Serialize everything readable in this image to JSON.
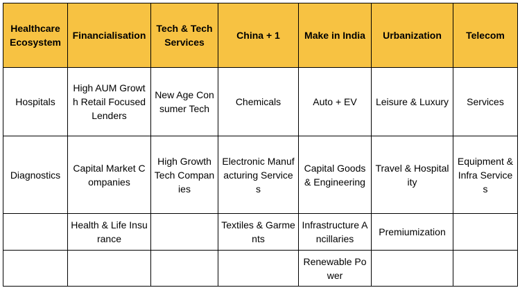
{
  "colors": {
    "header_background": "#f7c242",
    "border": "#000000",
    "text": "#000000"
  },
  "table": {
    "headers": [
      "Healthcare Ecosystem",
      "Financialisation",
      "Tech & Tech Services",
      "China + 1",
      "Make in India",
      "Urbanization",
      "Telecom"
    ],
    "rows": [
      [
        "Hospitals",
        "High AUM Growth Retail Focused Lenders",
        "New Age Consumer Tech",
        "Chemicals",
        "Auto + EV",
        "Leisure & Luxury",
        "Services"
      ],
      [
        "Diagnostics",
        "Capital Market Companies",
        "High Growth Tech Companies",
        "Electronic Manufacturing Services",
        "Capital Goods & Engineering",
        "Travel & Hospitality",
        "Equipment & Infra Services"
      ],
      [
        "",
        "Health & Life Insurance",
        "",
        "Textiles & Garments",
        "Infrastructure Ancillaries",
        "Premiumization",
        ""
      ],
      [
        "",
        "",
        "",
        "",
        "Renewable Power",
        "",
        ""
      ]
    ]
  }
}
